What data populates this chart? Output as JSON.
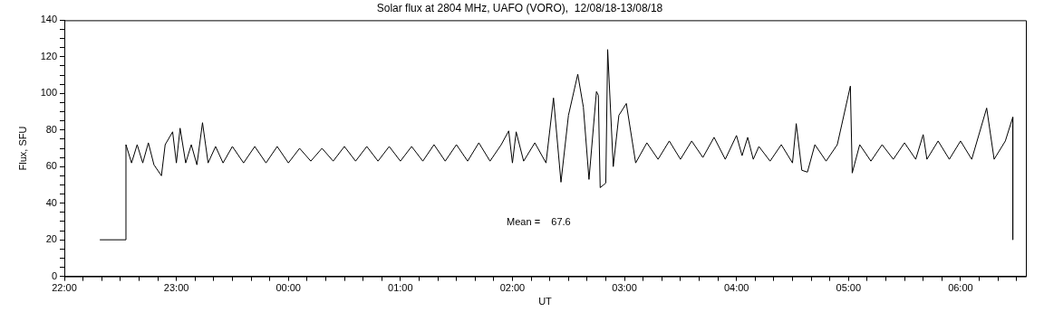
{
  "chart_data": {
    "type": "line",
    "title": "Solar flux at 2804 MHz, UAFO (VORO),  12/08/18-13/08/18",
    "xlabel": "UT",
    "ylabel": "Flux, SFU",
    "annotations": [
      "Mean =    67.6"
    ],
    "xlim": [
      "--08-12T22:00",
      "--08-13T06:35"
    ],
    "xticks": [
      {
        "value": "--08-12T22:00",
        "label": "22:00"
      },
      {
        "value": "--08-12T22:10",
        "label": null
      },
      {
        "value": "--08-12T22:20",
        "label": null
      },
      {
        "value": "--08-12T22:30",
        "label": null
      },
      {
        "value": "--08-12T22:40",
        "label": null
      },
      {
        "value": "--08-12T22:50",
        "label": null
      },
      {
        "value": "--08-12T23:00",
        "label": "23:00"
      },
      {
        "value": "--08-12T23:10",
        "label": null
      },
      {
        "value": "--08-12T23:20",
        "label": null
      },
      {
        "value": "--08-12T23:30",
        "label": null
      },
      {
        "value": "--08-12T23:40",
        "label": null
      },
      {
        "value": "--08-12T23:50",
        "label": null
      },
      {
        "value": "--08-13T00:00",
        "label": "00:00"
      },
      {
        "value": "--08-13T00:10",
        "label": null
      },
      {
        "value": "--08-13T00:20",
        "label": null
      },
      {
        "value": "--08-13T00:30",
        "label": null
      },
      {
        "value": "--08-13T00:40",
        "label": null
      },
      {
        "value": "--08-13T00:50",
        "label": null
      },
      {
        "value": "--08-13T01:00",
        "label": "01:00"
      },
      {
        "value": "--08-13T01:10",
        "label": null
      },
      {
        "value": "--08-13T01:20",
        "label": null
      },
      {
        "value": "--08-13T01:30",
        "label": null
      },
      {
        "value": "--08-13T01:40",
        "label": null
      },
      {
        "value": "--08-13T01:50",
        "label": null
      },
      {
        "value": "--08-13T02:00",
        "label": "02:00"
      },
      {
        "value": "--08-13T02:10",
        "label": null
      },
      {
        "value": "--08-13T02:20",
        "label": null
      },
      {
        "value": "--08-13T02:30",
        "label": null
      },
      {
        "value": "--08-13T02:40",
        "label": null
      },
      {
        "value": "--08-13T02:50",
        "label": null
      },
      {
        "value": "--08-13T03:00",
        "label": "03:00"
      },
      {
        "value": "--08-13T03:10",
        "label": null
      },
      {
        "value": "--08-13T03:20",
        "label": null
      },
      {
        "value": "--08-13T03:30",
        "label": null
      },
      {
        "value": "--08-13T03:40",
        "label": null
      },
      {
        "value": "--08-13T03:50",
        "label": null
      },
      {
        "value": "--08-13T04:00",
        "label": "04:00"
      },
      {
        "value": "--08-13T04:10",
        "label": null
      },
      {
        "value": "--08-13T04:20",
        "label": null
      },
      {
        "value": "--08-13T04:30",
        "label": null
      },
      {
        "value": "--08-13T04:40",
        "label": null
      },
      {
        "value": "--08-13T04:50",
        "label": null
      },
      {
        "value": "--08-13T05:00",
        "label": "05:00"
      },
      {
        "value": "--08-13T05:10",
        "label": null
      },
      {
        "value": "--08-13T05:20",
        "label": null
      },
      {
        "value": "--08-13T05:30",
        "label": null
      },
      {
        "value": "--08-13T05:40",
        "label": null
      },
      {
        "value": "--08-13T05:50",
        "label": null
      },
      {
        "value": "--08-13T06:00",
        "label": "06:00"
      },
      {
        "value": "--08-13T06:10",
        "label": null
      },
      {
        "value": "--08-13T06:20",
        "label": null
      },
      {
        "value": "--08-13T06:30",
        "label": null
      }
    ],
    "ylim": [
      0,
      140
    ],
    "yticks": [
      0,
      {
        "value": 5,
        "label": null
      },
      {
        "value": 10,
        "label": null
      },
      {
        "value": 15,
        "label": null
      },
      20,
      {
        "value": 25,
        "label": null
      },
      {
        "value": 30,
        "label": null
      },
      {
        "value": 35,
        "label": null
      },
      40,
      {
        "value": 45,
        "label": null
      },
      {
        "value": 50,
        "label": null
      },
      {
        "value": 55,
        "label": null
      },
      60,
      {
        "value": 65,
        "label": null
      },
      {
        "value": 70,
        "label": null
      },
      {
        "value": 75,
        "label": null
      },
      80,
      {
        "value": 85,
        "label": null
      },
      {
        "value": 90,
        "label": null
      },
      {
        "value": 95,
        "label": null
      },
      100,
      {
        "value": 105,
        "label": null
      },
      {
        "value": 110,
        "label": null
      },
      {
        "value": 115,
        "label": null
      },
      120,
      {
        "value": 125,
        "label": null
      },
      {
        "value": 130,
        "label": null
      },
      {
        "value": 135,
        "label": null
      },
      140
    ],
    "series": [
      {
        "color": "#000000",
        "x": [
          "--08-12T22:19",
          "--08-12T22:33",
          "--08-12T22:33",
          "--08-12T22:36",
          "--08-12T22:39",
          "--08-12T22:42",
          "--08-12T22:45",
          "--08-12T22:48",
          "--08-12T22:52",
          "--08-12T22:54",
          "--08-12T22:58",
          "--08-12T23:00",
          "--08-12T23:02",
          "--08-12T23:05",
          "--08-12T23:08",
          "--08-12T23:11",
          "--08-12T23:14",
          "--08-12T23:17",
          "--08-12T23:21",
          "--08-12T23:25",
          "--08-12T23:30",
          "--08-12T23:36",
          "--08-12T23:42",
          "--08-12T23:48",
          "--08-12T23:54",
          "--08-13T00:00",
          "--08-13T00:06",
          "--08-13T00:12",
          "--08-13T00:18",
          "--08-13T00:24",
          "--08-13T00:30",
          "--08-13T00:36",
          "--08-13T00:42",
          "--08-13T00:48",
          "--08-13T00:54",
          "--08-13T01:00",
          "--08-13T01:06",
          "--08-13T01:12",
          "--08-13T01:18",
          "--08-13T01:24",
          "--08-13T01:30",
          "--08-13T01:36",
          "--08-13T01:42",
          "--08-13T01:48",
          "--08-13T01:54",
          "--08-13T01:58",
          "--08-13T02:00",
          "--08-13T02:02",
          "--08-13T02:06",
          "--08-13T02:12",
          "--08-13T02:18",
          "--08-13T02:22",
          "--08-13T02:26",
          "--08-13T02:30",
          "--08-13T02:35",
          "--08-13T02:38",
          "--08-13T02:41",
          "--08-13T02:45",
          "--08-13T02:46",
          "--08-13T02:47",
          "--08-13T02:50",
          "--08-13T02:51",
          "--08-13T02:54",
          "--08-13T02:57",
          "--08-13T03:01",
          "--08-13T03:06",
          "--08-13T03:12",
          "--08-13T03:18",
          "--08-13T03:24",
          "--08-13T03:30",
          "--08-13T03:36",
          "--08-13T03:42",
          "--08-13T03:48",
          "--08-13T03:54",
          "--08-13T04:00",
          "--08-13T04:03",
          "--08-13T04:06",
          "--08-13T04:09",
          "--08-13T04:12",
          "--08-13T04:18",
          "--08-13T04:24",
          "--08-13T04:30",
          "--08-13T04:32",
          "--08-13T04:35",
          "--08-13T04:38",
          "--08-13T04:42",
          "--08-13T04:48",
          "--08-13T04:54",
          "--08-13T05:01",
          "--08-13T05:02",
          "--08-13T05:06",
          "--08-13T05:12",
          "--08-13T05:18",
          "--08-13T05:24",
          "--08-13T05:30",
          "--08-13T05:36",
          "--08-13T05:40",
          "--08-13T05:42",
          "--08-13T05:48",
          "--08-13T05:54",
          "--08-13T06:00",
          "--08-13T06:06",
          "--08-13T06:14",
          "--08-13T06:18",
          "--08-13T06:24",
          "--08-13T06:28",
          "--08-13T06:28"
        ],
        "values": [
          20,
          20,
          72,
          62,
          72,
          62,
          73,
          61,
          55,
          72,
          79,
          62,
          81,
          62,
          72,
          61,
          84,
          62,
          71,
          62,
          71,
          62,
          71,
          62,
          71,
          62,
          70,
          63,
          70,
          63,
          71,
          63,
          71,
          63,
          71,
          63,
          71,
          63,
          72,
          63,
          72,
          63,
          73,
          63,
          72,
          79.5,
          62,
          79,
          63,
          73,
          62,
          97.5,
          51.5,
          88,
          110.5,
          92.5,
          53,
          101,
          99,
          48.5,
          51,
          124,
          60,
          88,
          94.5,
          62,
          73,
          64,
          74,
          64,
          74,
          65,
          76,
          64,
          77,
          66,
          76,
          64,
          71,
          63,
          72,
          62,
          83.5,
          58,
          57,
          72,
          63,
          72,
          104,
          56.5,
          72,
          63,
          72,
          64,
          73,
          64,
          77.5,
          64,
          74,
          64,
          74,
          64,
          92,
          64,
          74,
          87,
          20
        ]
      }
    ]
  }
}
